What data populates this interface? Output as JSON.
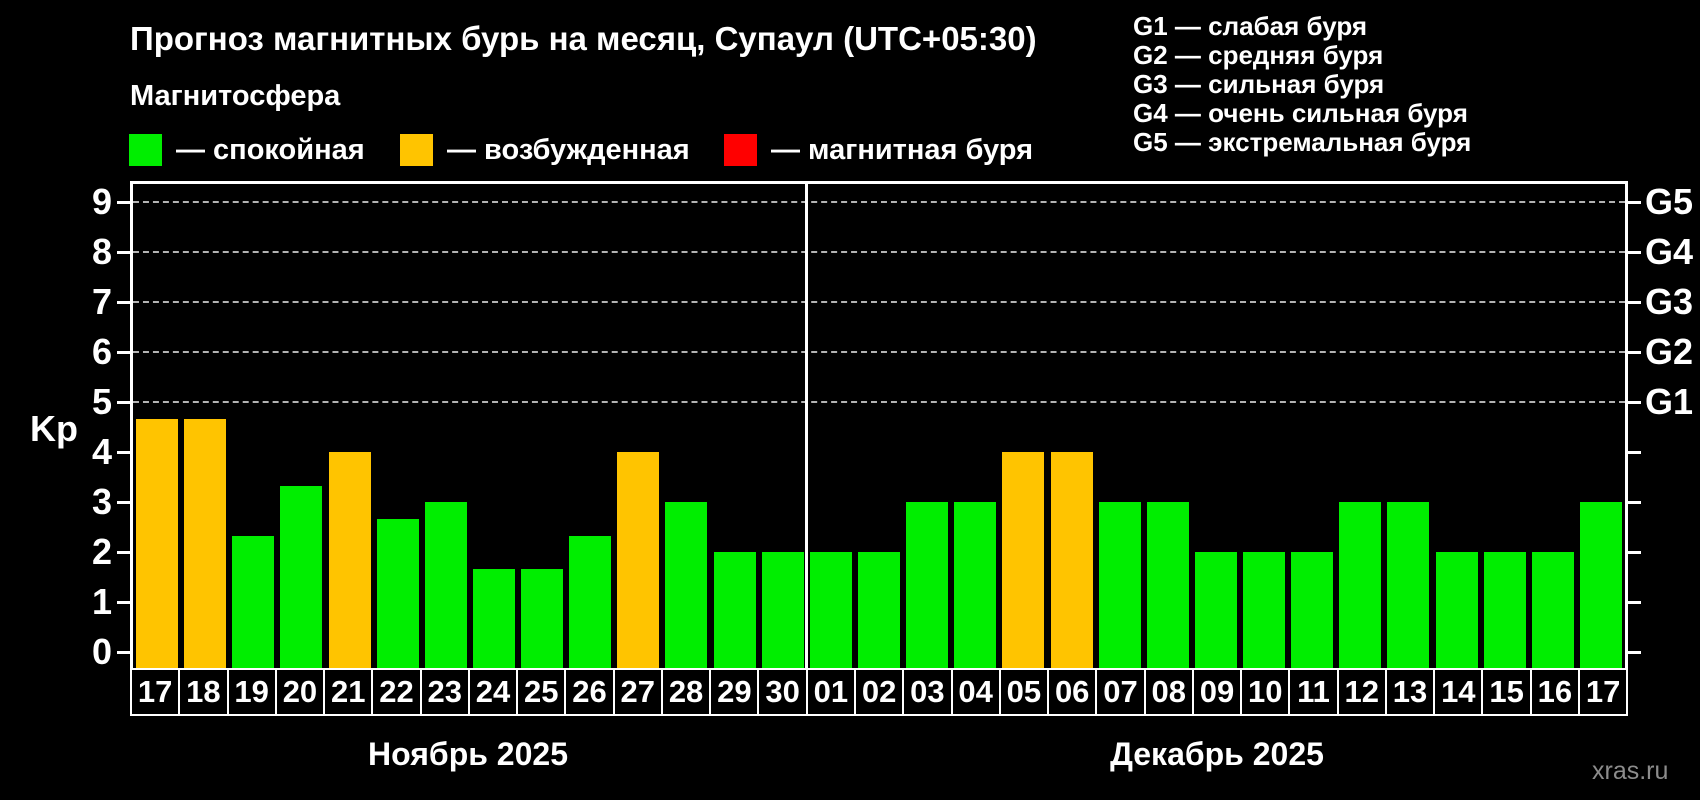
{
  "title": "Прогноз магнитных бурь на месяц, Супаул (UTC+05:30)",
  "subtitle": "Магнитосфера",
  "legend": {
    "items": [
      {
        "key": "quiet",
        "label": "— спокойная",
        "color": "#00ee00"
      },
      {
        "key": "excited",
        "label": "— возбужденная",
        "color": "#ffc400"
      },
      {
        "key": "storm",
        "label": "— магнитная буря",
        "color": "#ff0000"
      }
    ]
  },
  "storm_scale": [
    "G1 — слабая буря",
    "G2 — средняя буря",
    "G3 — сильная буря",
    "G4 — очень сильная буря",
    "G5 — экстремальная буря"
  ],
  "watermark": "xras.ru",
  "colors": {
    "quiet": "#00ee00",
    "excited": "#ffc400",
    "storm": "#ff0000",
    "grid": "#b3b3b3",
    "axis": "#ffffff",
    "background": "#000000"
  },
  "chart_data": {
    "type": "bar",
    "title": "Прогноз магнитных бурь на месяц, Супаул (UTC+05:30)",
    "ylabel": "Kp",
    "ylim": [
      0,
      9.7
    ],
    "y_ticks": [
      0,
      1,
      2,
      3,
      4,
      5,
      6,
      7,
      8,
      9
    ],
    "grid_levels": [
      5,
      6,
      7,
      8,
      9
    ],
    "right_axis": [
      {
        "kp": 5,
        "label": "G1"
      },
      {
        "kp": 6,
        "label": "G2"
      },
      {
        "kp": 7,
        "label": "G3"
      },
      {
        "kp": 8,
        "label": "G4"
      },
      {
        "kp": 9,
        "label": "G5"
      }
    ],
    "legend_position": "top",
    "grid": true,
    "months": [
      {
        "label": "Ноябрь 2025",
        "days": [
          {
            "date": "17",
            "kp": 4.67,
            "status": "excited"
          },
          {
            "date": "18",
            "kp": 4.67,
            "status": "excited"
          },
          {
            "date": "19",
            "kp": 2.33,
            "status": "quiet"
          },
          {
            "date": "20",
            "kp": 3.33,
            "status": "quiet"
          },
          {
            "date": "21",
            "kp": 4.0,
            "status": "excited"
          },
          {
            "date": "22",
            "kp": 2.67,
            "status": "quiet"
          },
          {
            "date": "23",
            "kp": 3.0,
            "status": "quiet"
          },
          {
            "date": "24",
            "kp": 1.67,
            "status": "quiet"
          },
          {
            "date": "25",
            "kp": 1.67,
            "status": "quiet"
          },
          {
            "date": "26",
            "kp": 2.33,
            "status": "quiet"
          },
          {
            "date": "27",
            "kp": 4.0,
            "status": "excited"
          },
          {
            "date": "28",
            "kp": 3.0,
            "status": "quiet"
          },
          {
            "date": "29",
            "kp": 2.0,
            "status": "quiet"
          },
          {
            "date": "30",
            "kp": 2.0,
            "status": "quiet"
          }
        ]
      },
      {
        "label": "Декабрь 2025",
        "days": [
          {
            "date": "01",
            "kp": 2.0,
            "status": "quiet"
          },
          {
            "date": "02",
            "kp": 2.0,
            "status": "quiet"
          },
          {
            "date": "03",
            "kp": 3.0,
            "status": "quiet"
          },
          {
            "date": "04",
            "kp": 3.0,
            "status": "quiet"
          },
          {
            "date": "05",
            "kp": 4.0,
            "status": "excited"
          },
          {
            "date": "06",
            "kp": 4.0,
            "status": "excited"
          },
          {
            "date": "07",
            "kp": 3.0,
            "status": "quiet"
          },
          {
            "date": "08",
            "kp": 3.0,
            "status": "quiet"
          },
          {
            "date": "09",
            "kp": 2.0,
            "status": "quiet"
          },
          {
            "date": "10",
            "kp": 2.0,
            "status": "quiet"
          },
          {
            "date": "11",
            "kp": 2.0,
            "status": "quiet"
          },
          {
            "date": "12",
            "kp": 3.0,
            "status": "quiet"
          },
          {
            "date": "13",
            "kp": 3.0,
            "status": "quiet"
          },
          {
            "date": "14",
            "kp": 2.0,
            "status": "quiet"
          },
          {
            "date": "15",
            "kp": 2.0,
            "status": "quiet"
          },
          {
            "date": "16",
            "kp": 2.0,
            "status": "quiet"
          },
          {
            "date": "17",
            "kp": 3.0,
            "status": "quiet"
          }
        ]
      }
    ]
  }
}
